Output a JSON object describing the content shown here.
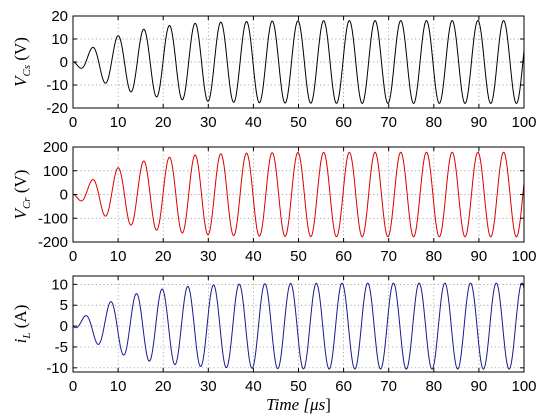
{
  "chart_data": [
    {
      "type": "line",
      "ylabel": "V",
      "ylabel_sub": "Cs",
      "ylabel_unit": " (V)",
      "xlim": [
        0,
        100
      ],
      "ylim": [
        -20,
        20
      ],
      "xticks": [
        0,
        10,
        20,
        30,
        40,
        50,
        60,
        70,
        80,
        90,
        100
      ],
      "yticks": [
        -20,
        -10,
        0,
        10,
        20
      ],
      "grid": true,
      "color": "#000000",
      "series": [
        {
          "period": 5.7,
          "amplitude": 18,
          "tau": 10,
          "phase": "negative-sine",
          "x_range": [
            0,
            100
          ]
        }
      ]
    },
    {
      "type": "line",
      "ylabel": "V",
      "ylabel_sub": "Cr",
      "ylabel_unit": " (V)",
      "xlim": [
        0,
        100
      ],
      "ylim": [
        -200,
        200
      ],
      "xticks": [
        0,
        10,
        20,
        30,
        40,
        50,
        60,
        70,
        80,
        90,
        100
      ],
      "yticks": [
        -200,
        -100,
        0,
        100,
        200
      ],
      "grid": true,
      "color": "#dd0000",
      "series": [
        {
          "period": 5.7,
          "amplitude": 178,
          "tau": 10,
          "phase": "negative-sine",
          "x_range": [
            0,
            100
          ]
        }
      ]
    },
    {
      "type": "line",
      "ylabel": "i",
      "ylabel_sub": "L",
      "ylabel_unit": " (A)",
      "xlabel": "Time [",
      "xlabel_unit": "μs",
      "xlabel_close": "]",
      "xlim": [
        0,
        100
      ],
      "ylim": [
        -11,
        12
      ],
      "xticks": [
        0,
        10,
        20,
        30,
        40,
        50,
        60,
        70,
        80,
        90,
        100
      ],
      "yticks": [
        -10,
        -5,
        0,
        5,
        10
      ],
      "grid": true,
      "color": "#1a1a8c",
      "series": [
        {
          "period": 5.7,
          "amplitude": 10.3,
          "tau": 10,
          "phase": "cosine-start",
          "x_range": [
            0,
            100
          ]
        }
      ]
    }
  ]
}
